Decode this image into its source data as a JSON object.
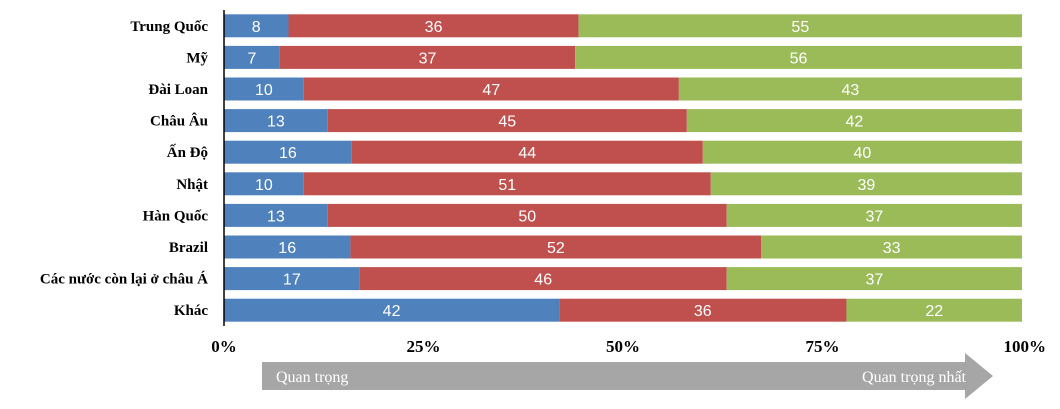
{
  "chart_data": {
    "type": "bar",
    "orientation": "horizontal",
    "stacked": "percent",
    "categories": [
      "Trung Quốc",
      "Mỹ",
      "Đài Loan",
      "Châu Âu",
      "Ấn Độ",
      "Nhật",
      "Hàn Quốc",
      "Brazil",
      "Các nước còn lại ở châu Á",
      "Khác"
    ],
    "series": [
      {
        "values": [
          8,
          7,
          10,
          13,
          16,
          10,
          13,
          16,
          17,
          42
        ],
        "color": "#4f81bd"
      },
      {
        "values": [
          36,
          37,
          47,
          45,
          44,
          51,
          50,
          52,
          46,
          36
        ],
        "color": "#c0504d"
      },
      {
        "values": [
          55,
          56,
          43,
          42,
          40,
          39,
          37,
          33,
          37,
          22
        ],
        "color": "#9bbb59"
      }
    ],
    "x_ticks": [
      "0%",
      "25%",
      "50%",
      "75%",
      "100%"
    ],
    "xlim": [
      0,
      100
    ],
    "grid": false,
    "legend": "none"
  },
  "arrow": {
    "left_label": "Quan trọng",
    "right_label": "Quan trọng nhất",
    "color": "#a6a6a6"
  }
}
